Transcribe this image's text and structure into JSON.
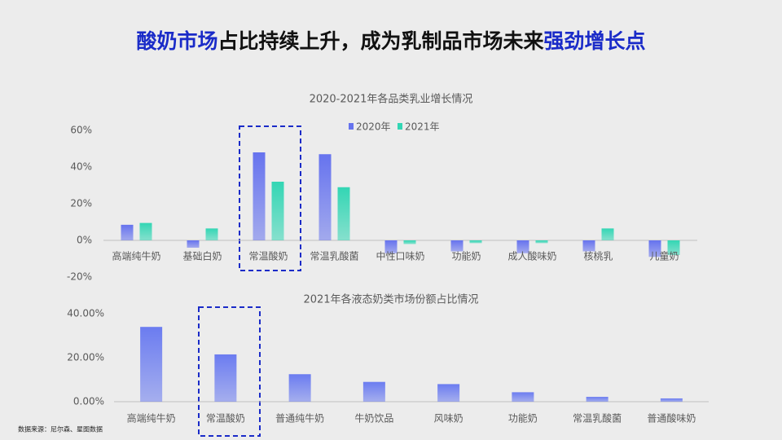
{
  "title_parts": [
    "酸奶市场",
    "占比持续上升，成为乳制品市场未来",
    "强劲增长点"
  ],
  "source": "数据来源：尼尔森、星图数据",
  "chart_data": [
    {
      "type": "bar",
      "title": "2020-2021年各品类乳业增长情况",
      "categories": [
        "高端纯牛奶",
        "基础白奶",
        "常温酸奶",
        "常温乳酸菌",
        "中性口味奶",
        "功能奶",
        "成人酸味奶",
        "核桃乳",
        "儿童奶"
      ],
      "series": [
        {
          "name": "2020年",
          "color": "#6673ee",
          "values": [
            8.5,
            -4,
            48,
            47,
            -7,
            -6,
            -7,
            -6,
            -9
          ]
        },
        {
          "name": "2021年",
          "color": "#33d6b4",
          "values": [
            9.5,
            6.5,
            32,
            29,
            -2,
            -1.5,
            -1.5,
            6.5,
            -8
          ]
        }
      ],
      "ylim": [
        -20,
        60
      ],
      "yticks": [
        {
          "value": -20,
          "label": "-20%"
        },
        {
          "value": 0,
          "label": "0%"
        },
        {
          "value": 20,
          "label": "20%"
        },
        {
          "value": 40,
          "label": "40%"
        },
        {
          "value": 60,
          "label": "60%"
        }
      ],
      "legend": "top"
    },
    {
      "type": "bar",
      "title": "2021年各液态奶类市场份额占比情况",
      "categories": [
        "高端纯牛奶",
        "常温酸奶",
        "普通纯牛奶",
        "牛奶饮品",
        "风味奶",
        "功能奶",
        "常温乳酸菌",
        "普通酸味奶"
      ],
      "series": [
        {
          "name": null,
          "color": "#6b7cf0",
          "values": [
            34,
            21.5,
            12.5,
            9,
            8,
            4.3,
            2.2,
            1.5
          ]
        }
      ],
      "ylim": [
        0,
        40
      ],
      "yticks": [
        {
          "value": 0,
          "label": "0.00%"
        },
        {
          "value": 20,
          "label": "20.00%"
        },
        {
          "value": 40,
          "label": "40.00%"
        }
      ]
    }
  ]
}
